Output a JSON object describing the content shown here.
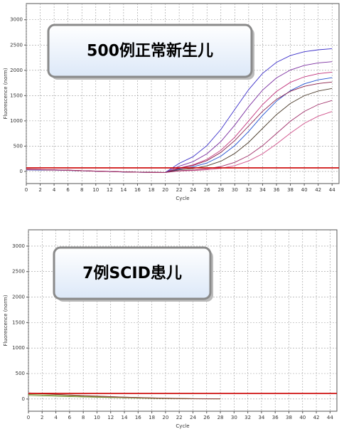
{
  "chart_data": [
    {
      "type": "line",
      "ylabel": "Fluorescence (norm)",
      "xlabel": "Cycle",
      "annotation": "500例正常新生儿",
      "x": [
        0,
        2,
        4,
        6,
        8,
        10,
        12,
        14,
        16,
        18,
        20,
        22,
        24,
        26,
        28,
        30,
        32,
        34,
        36,
        38,
        40,
        42,
        44
      ],
      "xlim": [
        0,
        45
      ],
      "xticks": [
        0,
        2,
        4,
        6,
        8,
        10,
        12,
        14,
        16,
        18,
        20,
        22,
        24,
        26,
        28,
        30,
        32,
        34,
        36,
        38,
        40,
        42,
        44
      ],
      "ylim": [
        -240,
        3320
      ],
      "yticks": [
        0,
        500,
        1000,
        1500,
        2000,
        2500,
        3000
      ],
      "grid": true,
      "threshold": 70,
      "threshold_color": "#cc0000",
      "series": [
        {
          "color": "#3b2fc9",
          "values": [
            40,
            35,
            30,
            25,
            15,
            5,
            0,
            -10,
            -15,
            -20,
            -20,
            159,
            292,
            512,
            831,
            1225,
            1619,
            1938,
            2158,
            2291,
            2367,
            2406,
            2428
          ]
        },
        {
          "color": "#7b2fa0",
          "values": [
            35,
            32,
            28,
            22,
            14,
            4,
            -2,
            -10,
            -15,
            -18,
            -20,
            103,
            194,
            350,
            592,
            917,
            1283,
            1608,
            1850,
            2006,
            2097,
            2147,
            2171
          ]
        },
        {
          "color": "#c0307a",
          "values": [
            45,
            38,
            32,
            26,
            16,
            6,
            0,
            -8,
            -14,
            -18,
            -22,
            68,
            130,
            238,
            418,
            678,
            1000,
            1322,
            1582,
            1762,
            1870,
            1932,
            1964
          ]
        },
        {
          "color": "#1f4fd0",
          "values": [
            30,
            28,
            24,
            20,
            12,
            4,
            -4,
            -12,
            -16,
            -20,
            -22,
            48,
            89,
            167,
            302,
            511,
            792,
            1108,
            1389,
            1598,
            1733,
            1811,
            1854
          ]
        },
        {
          "color": "#8a1f4a",
          "values": [
            42,
            36,
            30,
            24,
            15,
            5,
            -1,
            -9,
            -14,
            -19,
            -21,
            61,
            117,
            214,
            376,
            610,
            900,
            1190,
            1424,
            1586,
            1683,
            1739,
            1768
          ]
        },
        {
          "color": "#4a3a2a",
          "values": [
            38,
            34,
            29,
            23,
            14,
            5,
            -2,
            -10,
            -15,
            -19,
            -20,
            31,
            58,
            111,
            202,
            355,
            576,
            850,
            1124,
            1345,
            1498,
            1590,
            1642
          ]
        },
        {
          "color": "#d0508a",
          "values": [
            36,
            33,
            28,
            22,
            13,
            4,
            -3,
            -11,
            -16,
            -20,
            -21,
            9,
            17,
            33,
            61,
            114,
            207,
            350,
            542,
            758,
            950,
            1093,
            1186
          ]
        },
        {
          "color": "#a0306a",
          "values": [
            40,
            35,
            30,
            24,
            15,
            6,
            -1,
            -9,
            -14,
            -18,
            -20,
            14,
            27,
            51,
            98,
            179,
            314,
            509,
            750,
            992,
            1187,
            1322,
            1403
          ]
        }
      ]
    },
    {
      "type": "line",
      "ylabel": "Fluorescence (norm)",
      "xlabel": "Cycle",
      "annotation": "7例SCID患儿",
      "x": [
        0,
        2,
        4,
        6,
        8,
        10,
        12,
        14,
        16,
        18,
        20,
        22,
        24,
        26,
        28,
        30,
        32,
        34,
        36,
        38,
        40,
        42,
        44
      ],
      "xlim": [
        0,
        45
      ],
      "xticks": [
        0,
        2,
        4,
        6,
        8,
        10,
        12,
        14,
        16,
        18,
        20,
        22,
        24,
        26,
        28,
        30,
        32,
        34,
        36,
        38,
        40,
        42,
        44
      ],
      "ylim": [
        -240,
        3320
      ],
      "yticks": [
        0,
        500,
        1000,
        1500,
        2000,
        2500,
        3000
      ],
      "grid": true,
      "threshold": 110,
      "threshold_color": "#cc0000",
      "series": [
        {
          "color": "#6b8e23",
          "values": [
            90,
            80,
            70,
            60,
            50,
            42,
            35,
            28,
            22,
            16,
            12,
            8,
            5,
            3,
            2,
            null,
            null,
            null,
            null,
            null,
            null,
            null,
            null
          ]
        },
        {
          "color": "#8b5a2b",
          "values": [
            110,
            100,
            90,
            78,
            66,
            55,
            45,
            36,
            28,
            21,
            15,
            10,
            6,
            4,
            3,
            null,
            null,
            null,
            null,
            null,
            null,
            null,
            null
          ]
        },
        {
          "color": "#7a8c3a",
          "values": [
            70,
            62,
            55,
            48,
            40,
            34,
            28,
            22,
            17,
            13,
            9,
            6,
            4,
            2,
            1,
            null,
            null,
            null,
            null,
            null,
            null,
            null,
            null
          ]
        },
        {
          "color": "#8b3a3a",
          "values": [
            120,
            105,
            92,
            80,
            68,
            57,
            46,
            37,
            29,
            22,
            16,
            11,
            7,
            5,
            3,
            null,
            null,
            null,
            null,
            null,
            null,
            null,
            null
          ]
        }
      ]
    }
  ]
}
